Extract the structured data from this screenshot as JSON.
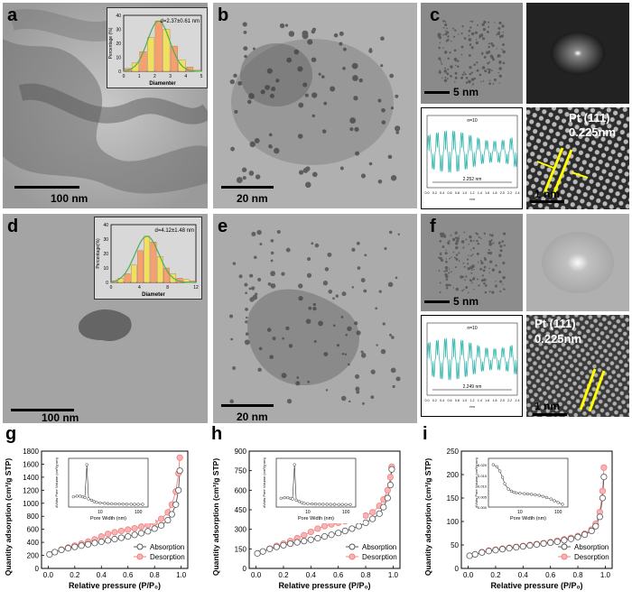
{
  "figure": {
    "panels": {
      "a": {
        "label": "a",
        "scale": "100 nm",
        "inset": {
          "annotation": "d=2.37±0.61 nm",
          "ylabel": "Percentage (%)",
          "xlabel": "Diamenter",
          "yticks": [
            "0",
            "10",
            "20",
            "30",
            "40"
          ],
          "xticks": [
            "0",
            "1",
            "2",
            "3",
            "4",
            "5"
          ]
        }
      },
      "b": {
        "label": "b",
        "scale": "20 nm"
      },
      "c": {
        "label": "c",
        "scale": "5 nm",
        "profile": {
          "n": "n=10",
          "span": "2.252 nm",
          "axis_label": "nm",
          "xticks": [
            "0.0",
            "0.2",
            "0.4",
            "0.6",
            "0.8",
            "1.0",
            "1.2",
            "1.4",
            "1.6",
            "1.8",
            "2.0",
            "2.2",
            "2.4"
          ]
        },
        "hrtem": {
          "plane": "Pt (111)",
          "spacing": "0.225nm",
          "scale": "1 nm"
        }
      },
      "d": {
        "label": "d",
        "scale": "100 nm",
        "inset": {
          "annotation": "d=4.12±1.48 nm",
          "ylabel": "Percentage(%)",
          "xlabel": "Diameter",
          "yticks": [
            "0",
            "10",
            "20",
            "30",
            "40"
          ],
          "xticks": [
            "0",
            "4",
            "8",
            "12"
          ]
        }
      },
      "e": {
        "label": "e",
        "scale": "20 nm"
      },
      "f": {
        "label": "f",
        "scale": "5 nm",
        "profile": {
          "n": "n=10",
          "span": "2.249 nm",
          "axis_label": "nm",
          "xticks": [
            "0.0",
            "0.2",
            "0.4",
            "0.6",
            "0.8",
            "1.0",
            "1.2",
            "1.4",
            "1.6",
            "1.8",
            "2.0",
            "2.2",
            "2.4"
          ]
        },
        "hrtem": {
          "plane": "Pt (111)",
          "spacing": "0.225nm",
          "scale": "1 nm"
        }
      },
      "g": {
        "label": "g"
      },
      "h": {
        "label": "h"
      },
      "i": {
        "label": "i"
      }
    }
  },
  "chart_data": [
    {
      "id": "g",
      "type": "line",
      "ylabel": "Quantity adsorption (cm³/g STP)",
      "xlabel": "Relative pressure (P/P₀)",
      "ylim": [
        0,
        1800
      ],
      "yticks": [
        "0",
        "200",
        "400",
        "600",
        "800",
        "1000",
        "1200",
        "1400",
        "1600",
        "1800"
      ],
      "xlim": [
        -0.05,
        1.05
      ],
      "xticks": [
        "0.0",
        "0.2",
        "0.4",
        "0.6",
        "0.8",
        "1.0"
      ],
      "legend": [
        "Absorption",
        "Desorption"
      ],
      "series": [
        {
          "name": "Absorption",
          "x": [
            0.01,
            0.05,
            0.1,
            0.15,
            0.2,
            0.25,
            0.3,
            0.35,
            0.4,
            0.45,
            0.5,
            0.55,
            0.6,
            0.65,
            0.7,
            0.75,
            0.8,
            0.85,
            0.9,
            0.93,
            0.96,
            0.98,
            0.99
          ],
          "y": [
            215,
            250,
            285,
            310,
            330,
            350,
            370,
            390,
            410,
            430,
            450,
            470,
            490,
            515,
            540,
            570,
            610,
            660,
            740,
            830,
            980,
            1200,
            1500
          ]
        },
        {
          "name": "Desorption",
          "x": [
            0.99,
            0.98,
            0.96,
            0.93,
            0.9,
            0.85,
            0.8,
            0.75,
            0.7,
            0.65,
            0.6,
            0.55,
            0.5,
            0.45,
            0.4,
            0.35,
            0.3,
            0.25,
            0.2,
            0.15,
            0.1
          ],
          "y": [
            1700,
            1460,
            1180,
            980,
            860,
            760,
            700,
            665,
            640,
            615,
            595,
            575,
            555,
            530,
            490,
            445,
            410,
            380,
            350,
            320,
            290
          ]
        }
      ],
      "inset": {
        "ylabel": "dV/dw Pore Volume (cm³/g·nm)",
        "xlabel": "Pore Width (nm)",
        "xticks": [
          "10",
          "100"
        ],
        "x": [
          2,
          2.5,
          3,
          3.5,
          4,
          4.5,
          5,
          6,
          7,
          8,
          10,
          13,
          16,
          20,
          25,
          32,
          40,
          50,
          65,
          80,
          100,
          130
        ],
        "y": [
          0.15,
          0.16,
          0.16,
          0.15,
          0.14,
          0.62,
          0.12,
          0.1,
          0.08,
          0.07,
          0.06,
          0.055,
          0.05,
          0.048,
          0.046,
          0.044,
          0.043,
          0.042,
          0.041,
          0.04,
          0.04,
          0.04
        ]
      }
    },
    {
      "id": "h",
      "type": "line",
      "ylabel": "Quantity adsorption (cm³/g STP)",
      "xlabel": "Relative pressure (P/P₀)",
      "ylim": [
        0,
        900
      ],
      "yticks": [
        "0",
        "150",
        "300",
        "450",
        "600",
        "750",
        "900"
      ],
      "xlim": [
        -0.05,
        1.05
      ],
      "xticks": [
        "0.0",
        "0.2",
        "0.4",
        "0.6",
        "0.8",
        "1.0"
      ],
      "legend": [
        "Absorption",
        "Desorption"
      ],
      "series": [
        {
          "name": "Absorption",
          "x": [
            0.01,
            0.05,
            0.1,
            0.15,
            0.2,
            0.25,
            0.3,
            0.35,
            0.4,
            0.45,
            0.5,
            0.55,
            0.6,
            0.65,
            0.7,
            0.75,
            0.8,
            0.85,
            0.9,
            0.93,
            0.96,
            0.98,
            0.99
          ],
          "y": [
            115,
            130,
            150,
            165,
            178,
            190,
            200,
            210,
            220,
            232,
            245,
            258,
            272,
            288,
            305,
            325,
            350,
            380,
            420,
            470,
            540,
            640,
            760
          ]
        },
        {
          "name": "Desorption",
          "x": [
            0.99,
            0.98,
            0.96,
            0.93,
            0.9,
            0.85,
            0.8,
            0.75,
            0.7,
            0.65,
            0.6,
            0.55,
            0.5,
            0.45,
            0.4,
            0.35,
            0.3,
            0.25,
            0.2,
            0.15,
            0.1
          ],
          "y": [
            780,
            700,
            600,
            530,
            480,
            430,
            405,
            390,
            375,
            362,
            350,
            338,
            325,
            305,
            280,
            255,
            232,
            210,
            190,
            172,
            152
          ]
        }
      ],
      "inset": {
        "ylabel": "dV/dw Pore Volume (cm³/g·nm)",
        "xlabel": "Pore Width (nm)",
        "xticks": [
          "10",
          "100"
        ],
        "x": [
          2,
          2.5,
          3,
          3.5,
          4,
          4.5,
          5,
          6,
          7,
          8,
          10,
          13,
          16,
          20,
          25,
          32,
          40,
          50,
          65,
          80,
          100,
          130
        ],
        "y": [
          0.14,
          0.15,
          0.15,
          0.14,
          0.13,
          0.68,
          0.11,
          0.09,
          0.07,
          0.06,
          0.055,
          0.05,
          0.048,
          0.046,
          0.045,
          0.044,
          0.043,
          0.042,
          0.041,
          0.04,
          0.04,
          0.04
        ]
      }
    },
    {
      "id": "i",
      "type": "line",
      "ylabel": "Quantity adsorption (cm³/g STP)",
      "xlabel": "Relative pressure (P/P₀)",
      "ylim": [
        0,
        250
      ],
      "yticks": [
        "0",
        "50",
        "100",
        "150",
        "200",
        "250"
      ],
      "xlim": [
        -0.05,
        1.05
      ],
      "xticks": [
        "0.0",
        "0.2",
        "0.4",
        "0.6",
        "0.8",
        "1.0"
      ],
      "legend": [
        "Absorption",
        "Desorption"
      ],
      "series": [
        {
          "name": "Absorption",
          "x": [
            0.01,
            0.05,
            0.1,
            0.15,
            0.2,
            0.25,
            0.3,
            0.35,
            0.4,
            0.45,
            0.5,
            0.55,
            0.6,
            0.65,
            0.7,
            0.75,
            0.8,
            0.85,
            0.9,
            0.93,
            0.96,
            0.98,
            0.99
          ],
          "y": [
            27,
            30,
            34,
            37,
            39,
            41,
            43,
            45,
            47,
            49,
            51,
            53,
            55,
            57,
            60,
            63,
            67,
            72,
            80,
            90,
            110,
            150,
            195
          ]
        },
        {
          "name": "Desorption",
          "x": [
            0.99,
            0.98,
            0.96,
            0.93,
            0.9,
            0.85,
            0.8,
            0.75,
            0.7,
            0.65,
            0.6,
            0.55,
            0.5,
            0.45,
            0.4,
            0.35,
            0.3,
            0.25,
            0.2,
            0.15,
            0.1
          ],
          "y": [
            215,
            165,
            120,
            95,
            83,
            74,
            69,
            65,
            62,
            59,
            56,
            54,
            52,
            50,
            48,
            46,
            44,
            42,
            40,
            38,
            35
          ]
        }
      ],
      "inset": {
        "ylabel": "dV/dw Pore Volume (cm³/g·nm)",
        "xlabel": "Pore Width (nm)",
        "xticks": [
          "10",
          "100"
        ],
        "yticks": [
          "0.000",
          "0.005",
          "0.010",
          "0.015",
          "0.020"
        ],
        "x": [
          2,
          2.5,
          3,
          3.5,
          4,
          5,
          6,
          7,
          8,
          10,
          13,
          16,
          20,
          25,
          32,
          40,
          50,
          65,
          80,
          100,
          130
        ],
        "y": [
          0.02,
          0.019,
          0.017,
          0.014,
          0.011,
          0.0085,
          0.0075,
          0.007,
          0.0067,
          0.0065,
          0.0063,
          0.0062,
          0.006,
          0.0058,
          0.0055,
          0.005,
          0.0045,
          0.0038,
          0.003,
          0.0022,
          0.0013
        ]
      }
    }
  ],
  "colors": {
    "absorption": "#555555",
    "desorption": "#f08080",
    "desorption_fill": "#f8b4b4",
    "profile": "#3cb8b0",
    "hist_orange": "#f4a070",
    "hist_yellow": "#f0e060",
    "fit": "#4caf50",
    "highlight": "#ffff00"
  }
}
